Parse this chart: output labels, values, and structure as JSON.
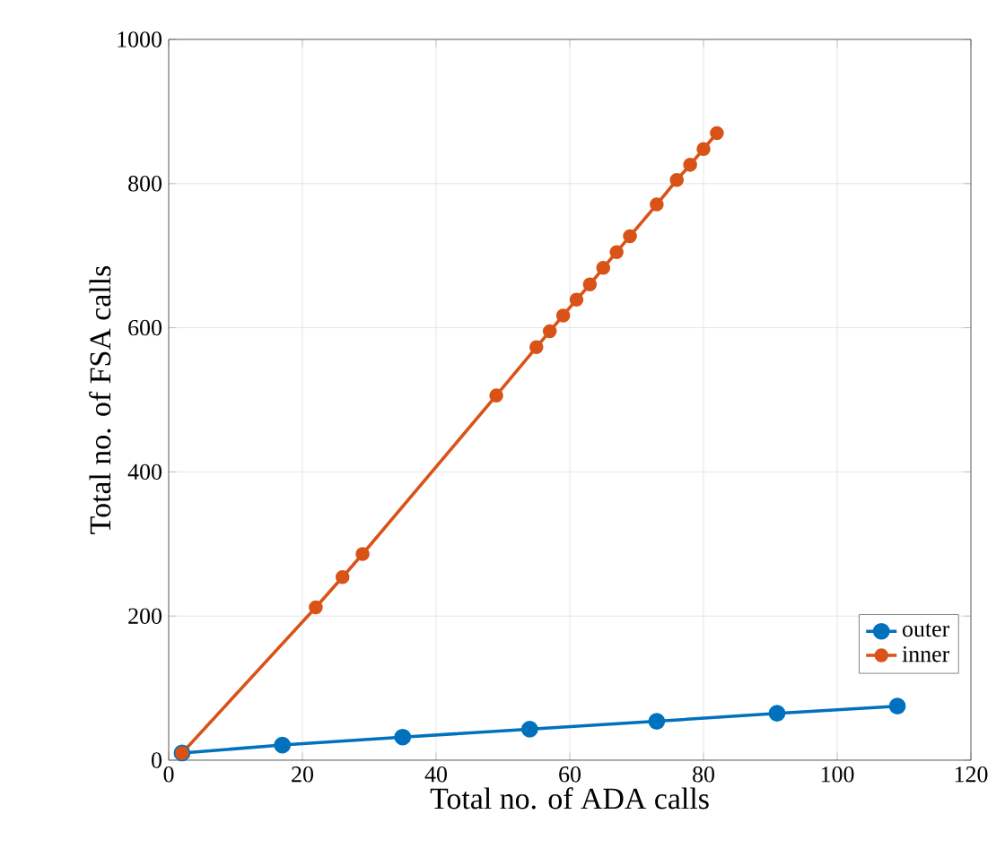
{
  "chart_data": {
    "type": "line",
    "xlabel": "Total no. of ADA calls",
    "ylabel": "Total no. of FSA calls",
    "series": [
      {
        "name": "outer",
        "color": "#0072bd",
        "x": [
          2,
          17,
          35,
          54,
          73,
          91,
          109
        ],
        "values": [
          10,
          21,
          32,
          43,
          54,
          65,
          75
        ]
      },
      {
        "name": "inner",
        "color": "#d95319",
        "x": [
          2,
          22,
          26,
          29,
          49,
          55,
          57,
          59,
          61,
          63,
          65,
          67,
          69,
          73,
          76,
          78,
          80,
          82
        ],
        "values": [
          10,
          212,
          254,
          286,
          506,
          573,
          595,
          617,
          639,
          660,
          683,
          705,
          727,
          771,
          805,
          826,
          848,
          870
        ]
      }
    ],
    "xlim": [
      0,
      120
    ],
    "ylim": [
      0,
      1000
    ],
    "xticks": [
      0,
      20,
      40,
      60,
      80,
      100,
      120
    ],
    "yticks": [
      0,
      200,
      400,
      600,
      800,
      1000
    ],
    "grid": true,
    "legend": "bottom right",
    "marker": "circle",
    "line_style": "solid"
  }
}
